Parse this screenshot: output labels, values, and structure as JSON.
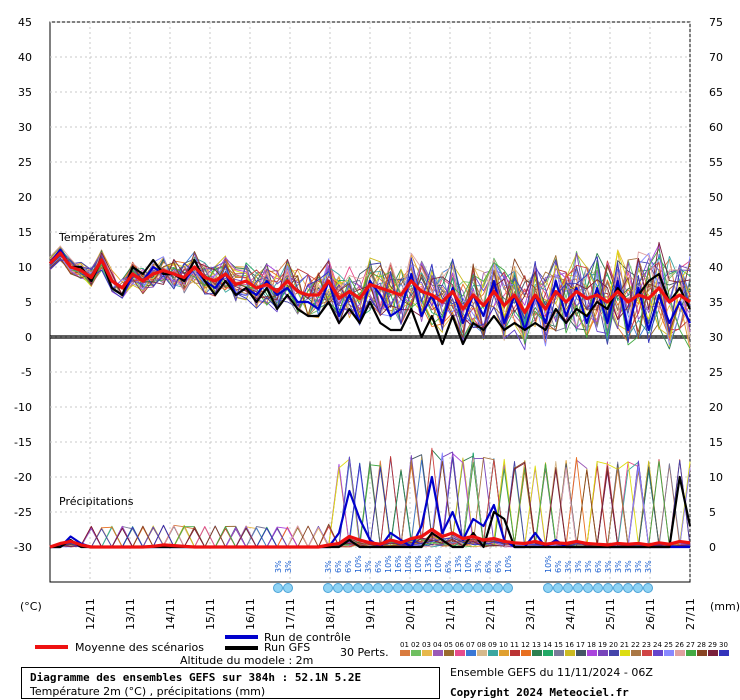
{
  "chart_data": {
    "type": "line",
    "title": "Diagramme des ensembles GEFS sur 384h : 52.1N 5.2E",
    "subtitle": "Température 2m (°C) , précipitations (mm)",
    "left_unit": "(°C)",
    "right_unit": "(mm)",
    "left_ticks": [
      "45",
      "40",
      "35",
      "30",
      "25",
      "20",
      "15",
      "10",
      "5",
      "0",
      "-5",
      "-10",
      "-15",
      "-20",
      "-25",
      "-30"
    ],
    "right_ticks": [
      "75",
      "70",
      "65",
      "60",
      "55",
      "50",
      "45",
      "40",
      "35",
      "30",
      "25",
      "20",
      "15",
      "10",
      "5",
      "0"
    ],
    "temp_panel_label": "Températures 2m",
    "precip_panel_label": "Précipitations",
    "dates": [
      "12/11",
      "13/11",
      "14/11",
      "15/11",
      "16/11",
      "17/11",
      "18/11",
      "19/11",
      "20/11",
      "21/11",
      "22/11",
      "23/11",
      "24/11",
      "25/11",
      "26/11",
      "27/11"
    ],
    "snow_labels": [
      "3%",
      "3%",
      "3%",
      "6%",
      "6%",
      "10%",
      "3%",
      "6%",
      "10%",
      "16%",
      "10%",
      "10%",
      "13%",
      "10%",
      "6%",
      "13%",
      "10%",
      "3%",
      "6%",
      "6%",
      "10%",
      "10%",
      "6%",
      "3%",
      "3%",
      "3%",
      "6%",
      "3%",
      "3%",
      "3%",
      "3%",
      "3%"
    ],
    "ensemble_mean_temp": [
      10.5,
      12,
      10,
      9.5,
      8.5,
      11,
      8,
      7,
      9,
      8,
      9,
      9.5,
      9,
      8.5,
      10,
      8.5,
      8,
      9,
      7.5,
      8,
      7,
      7.5,
      6.5,
      8,
      6.5,
      6,
      6,
      8,
      5.5,
      6.5,
      5.5,
      7.5,
      7,
      6.5,
      6,
      8,
      6.5,
      6,
      5,
      6.5,
      4,
      6,
      4.5,
      6.5,
      4.5,
      6,
      3.5,
      6,
      4,
      6.5,
      5,
      6.5,
      5.5,
      6,
      5,
      6.5,
      5,
      6,
      5.5,
      7,
      5,
      6,
      5
    ],
    "control_temp": [
      10.5,
      12.5,
      10,
      10,
      8,
      11,
      7,
      6,
      9,
      8,
      10,
      9,
      9,
      8,
      10,
      8,
      7,
      9,
      6,
      7,
      6,
      8,
      6,
      7,
      5,
      5,
      4,
      8,
      3,
      6,
      2,
      8,
      6,
      3,
      4,
      9,
      3,
      6,
      2,
      7,
      2,
      6,
      3,
      8,
      2,
      6,
      1,
      6,
      2,
      8,
      3,
      7,
      2,
      7,
      2,
      8,
      1,
      7,
      1,
      6,
      2,
      5,
      2
    ],
    "gfs_temp": [
      10.5,
      12,
      10,
      10,
      8,
      11,
      7,
      6,
      10,
      9,
      11,
      9,
      9,
      8,
      11,
      8,
      6,
      8,
      6,
      7,
      5,
      7,
      4,
      6,
      4,
      3,
      3,
      5,
      2,
      4,
      2,
      5,
      2,
      1,
      1,
      4,
      0,
      3,
      -1,
      3,
      -1,
      2,
      1,
      3,
      1,
      2,
      1,
      2,
      1,
      4,
      2,
      4,
      3,
      5,
      4,
      7,
      5,
      6,
      8,
      9,
      5,
      7,
      4
    ],
    "ensemble_mean_precip": [
      0,
      0.5,
      0.8,
      0.3,
      0,
      0,
      0,
      0,
      0,
      0,
      0.1,
      0.3,
      0.2,
      0.1,
      0,
      0,
      0,
      0,
      0,
      0,
      0,
      0,
      0,
      0,
      0,
      0,
      0,
      0.3,
      0.5,
      1.5,
      1,
      0.6,
      0.4,
      1,
      0.6,
      1.2,
      1.5,
      2.5,
      1.5,
      2,
      1.2,
      1.5,
      1,
      1.2,
      0.8,
      0.6,
      0.5,
      0.8,
      0.4,
      0.6,
      0.5,
      0.8,
      0.5,
      0.4,
      0.3,
      0.5,
      0.4,
      0.5,
      0.3,
      0.6,
      0.4,
      0.8,
      0.6
    ],
    "control_precip": [
      0,
      0,
      1.5,
      0.5,
      0,
      0,
      0,
      0,
      0,
      0,
      0,
      0,
      0,
      0,
      0,
      0,
      0,
      0,
      0,
      0,
      0,
      0,
      0,
      0,
      0,
      0,
      0,
      0,
      2,
      8,
      4,
      1,
      0,
      2,
      1,
      0,
      3,
      10,
      2,
      5,
      1,
      4,
      3,
      6,
      1,
      0,
      0,
      2,
      0,
      1,
      0,
      0,
      0,
      0,
      0,
      0,
      0,
      0,
      0,
      0,
      0,
      0,
      0
    ],
    "gfs_precip": [
      0,
      0,
      1,
      0,
      0,
      0,
      0,
      0,
      0,
      0,
      0,
      0,
      0,
      0,
      0,
      0,
      0,
      0,
      0,
      0,
      0,
      0,
      0,
      0,
      0,
      0,
      0,
      0,
      0,
      1,
      0,
      0,
      0,
      0,
      0,
      0,
      0,
      2,
      1,
      0,
      0,
      2,
      0,
      5,
      4,
      0,
      0,
      0,
      0,
      0,
      0,
      0,
      0,
      0,
      0,
      0,
      0,
      0,
      0,
      0,
      0,
      10,
      3
    ],
    "legend": {
      "mean": "Moyenne des scénarios",
      "control": "Run de contrôle",
      "gfs": "Run GFS",
      "perts": "30 Perts.",
      "altitude": "Altitude du modele : 2m",
      "colors": {
        "mean": "#ee1111",
        "control": "#0000cc",
        "gfs": "#000000"
      }
    },
    "pert_labels": [
      "01",
      "02",
      "03",
      "04",
      "05",
      "06",
      "07",
      "08",
      "09",
      "10",
      "11",
      "12",
      "13",
      "14",
      "15",
      "16",
      "17",
      "18",
      "19",
      "20",
      "21",
      "22",
      "23",
      "24",
      "25",
      "26",
      "27",
      "28",
      "29",
      "30"
    ],
    "pert_colors": [
      "#d97b3e",
      "#6fbf60",
      "#e7b84a",
      "#9b59b6",
      "#9a6b2d",
      "#e74c8c",
      "#3a78d6",
      "#d6b98c",
      "#3aa6a0",
      "#e0a030",
      "#bb3333",
      "#e86f20",
      "#2c7f4f",
      "#22aa66",
      "#7a7a9a",
      "#ccbb22",
      "#445566",
      "#aa44dd",
      "#7744bb",
      "#4444aa",
      "#dddd11",
      "#aa7744",
      "#d04444",
      "#6644cc",
      "#8888ff",
      "#e0a0a0",
      "#44aa44",
      "#884422",
      "#7a1f3a",
      "#3333bb"
    ],
    "footer_right_top": "Ensemble GEFS du 11/11/2024 - 06Z",
    "footer_right_bottom": "Copyright 2024 Meteociel.fr"
  }
}
